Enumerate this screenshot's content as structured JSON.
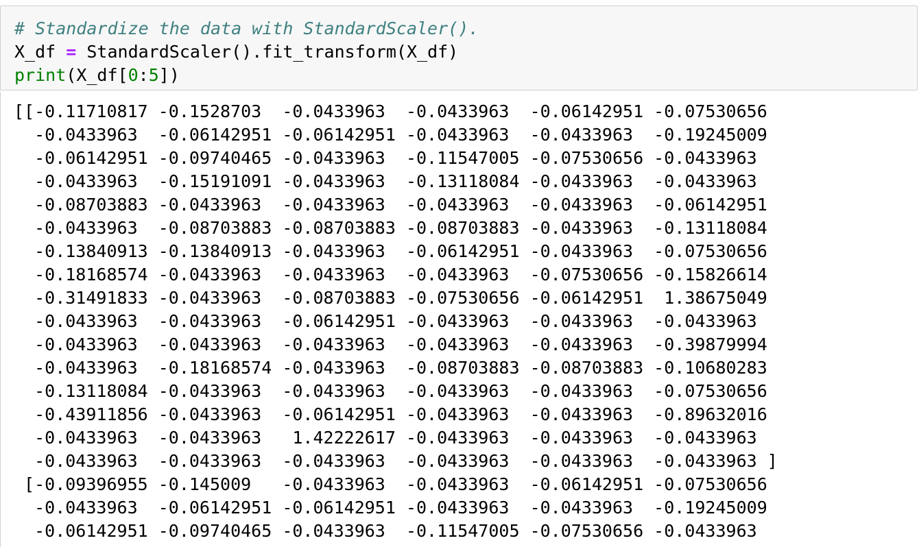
{
  "input_cell": {
    "comment": "# Standardize the data with StandardScaler().",
    "line2": {
      "var": "X_df ",
      "op": "=",
      "rest": " StandardScaler().fit_transform(X_df)"
    },
    "line3": {
      "func": "print",
      "open": "(X_df[",
      "start": "0",
      "colon": ":",
      "end": "5",
      "close": "])"
    }
  },
  "output_cell": {
    "lines": [
      "[[-0.11710817 -0.1528703  -0.0433963  -0.0433963  -0.06142951 -0.07530656",
      "  -0.0433963  -0.06142951 -0.06142951 -0.0433963  -0.0433963  -0.19245009",
      "  -0.06142951 -0.09740465 -0.0433963  -0.11547005 -0.07530656 -0.0433963",
      "  -0.0433963  -0.15191091 -0.0433963  -0.13118084 -0.0433963  -0.0433963",
      "  -0.08703883 -0.0433963  -0.0433963  -0.0433963  -0.0433963  -0.06142951",
      "  -0.0433963  -0.08703883 -0.08703883 -0.08703883 -0.0433963  -0.13118084",
      "  -0.13840913 -0.13840913 -0.0433963  -0.06142951 -0.0433963  -0.07530656",
      "  -0.18168574 -0.0433963  -0.0433963  -0.0433963  -0.07530656 -0.15826614",
      "  -0.31491833 -0.0433963  -0.08703883 -0.07530656 -0.06142951  1.38675049",
      "  -0.0433963  -0.0433963  -0.06142951 -0.0433963  -0.0433963  -0.0433963",
      "  -0.0433963  -0.0433963  -0.0433963  -0.0433963  -0.0433963  -0.39879994",
      "  -0.0433963  -0.18168574 -0.0433963  -0.08703883 -0.08703883 -0.10680283",
      "  -0.13118084 -0.0433963  -0.0433963  -0.0433963  -0.0433963  -0.07530656",
      "  -0.43911856 -0.0433963  -0.06142951 -0.0433963  -0.0433963  -0.89632016",
      "  -0.0433963  -0.0433963   1.42222617 -0.0433963  -0.0433963  -0.0433963",
      "  -0.0433963  -0.0433963  -0.0433963  -0.0433963  -0.0433963  -0.0433963 ]",
      " [-0.09396955 -0.145009   -0.0433963  -0.0433963  -0.06142951 -0.07530656",
      "  -0.0433963  -0.06142951 -0.06142951 -0.0433963  -0.0433963  -0.19245009",
      "  -0.06142951 -0.09740465 -0.0433963  -0.11547005 -0.07530656 -0.0433963"
    ]
  }
}
